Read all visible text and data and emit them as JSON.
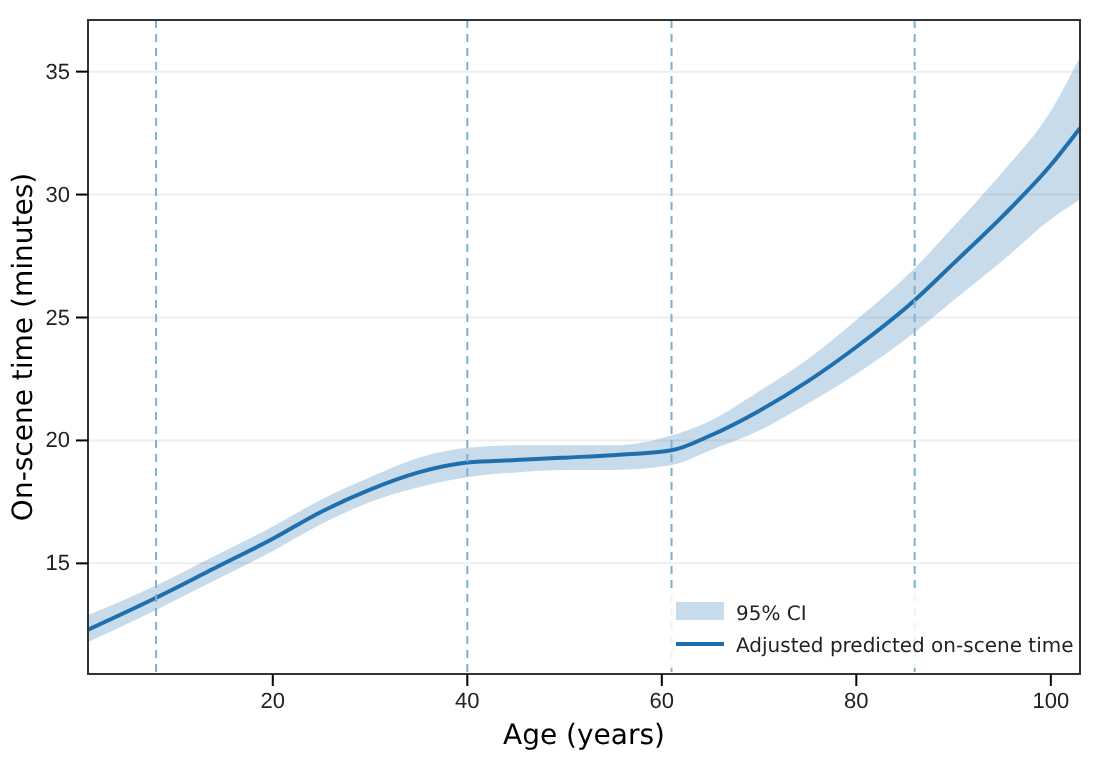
{
  "chart_data": {
    "type": "line",
    "xlabel": "Age (years)",
    "ylabel": "On-scene time (minutes)",
    "xlim": [
      1,
      103
    ],
    "ylim": [
      10.5,
      37.1
    ],
    "xticks": [
      20,
      40,
      60,
      80,
      100
    ],
    "yticks": [
      15,
      20,
      25,
      30,
      35
    ],
    "grid": "y",
    "legend": "bottom right",
    "annotations": [
      "95% CI"
    ],
    "series": [
      {
        "name": "Adjusted predicted on-scene time",
        "color": "#1f6fae",
        "x": [
          1,
          8,
          14,
          20,
          25,
          30,
          35,
          40,
          45,
          50,
          55,
          61,
          65,
          70,
          75,
          80,
          86,
          90,
          95,
          100,
          103
        ],
        "values": [
          12.3,
          13.6,
          14.8,
          16.0,
          17.1,
          18.0,
          18.7,
          19.1,
          19.2,
          19.3,
          19.4,
          19.6,
          20.2,
          21.2,
          22.4,
          23.8,
          25.7,
          27.2,
          29.1,
          31.2,
          32.7
        ],
        "lower": [
          11.8,
          13.1,
          14.3,
          15.5,
          16.6,
          17.5,
          18.1,
          18.5,
          18.7,
          18.8,
          18.8,
          19.0,
          19.6,
          20.4,
          21.5,
          22.7,
          24.4,
          25.7,
          27.3,
          29.0,
          29.8
        ],
        "upper": [
          12.9,
          14.1,
          15.3,
          16.5,
          17.6,
          18.5,
          19.3,
          19.7,
          19.8,
          19.8,
          19.8,
          20.2,
          20.8,
          22.0,
          23.3,
          24.9,
          27.0,
          28.7,
          30.9,
          33.4,
          35.6
        ]
      }
    ],
    "ref_lines": [
      {
        "axis": "x",
        "value": 8,
        "color": "#7fb0d0",
        "line_style": "dashed"
      },
      {
        "axis": "x",
        "value": 40,
        "color": "#7fb0d0",
        "line_style": "dashed"
      },
      {
        "axis": "x",
        "value": 61,
        "color": "#7fb0d0",
        "line_style": "dashed"
      },
      {
        "axis": "x",
        "value": 86,
        "color": "#7fb0d0",
        "line_style": "dashed"
      }
    ]
  }
}
